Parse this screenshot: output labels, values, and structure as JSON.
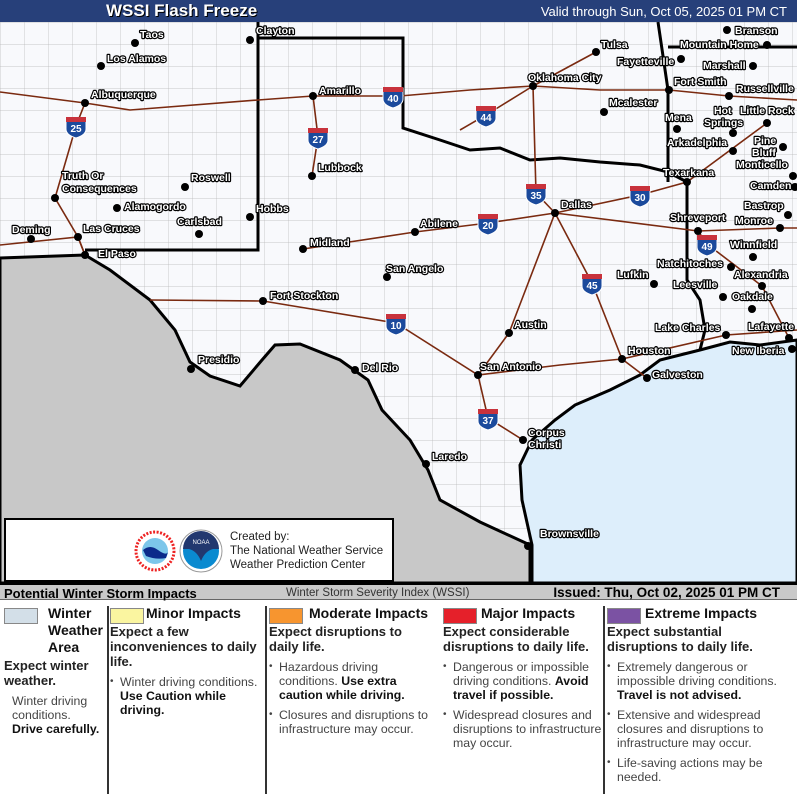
{
  "header": {
    "title": "WSSI Flash Freeze",
    "valid": "Valid through Sun, Oct 05, 2025 01 PM CT",
    "color": "#27407a"
  },
  "map": {
    "colors": {
      "land": "#f8f9fc",
      "mexico": "#c8c8c8",
      "water": "#ddeefb",
      "border": "#000000",
      "highway": "#7a2a10"
    },
    "cities": [
      "Taos",
      "Los Alamos",
      "Albuquerque",
      "Clayton",
      "Amarillo",
      "Tulsa",
      "Fayetteville",
      "Branson",
      "Mountain Home",
      "Marshall",
      "Oklahoma City",
      "Fort Smith",
      "Russellville",
      "Mcalester",
      "Hot",
      "Springs",
      "Little Rock",
      "Mena",
      "Arkadelphia",
      "Pine",
      "Bluff",
      "Monticello",
      "Texarkana",
      "Camden",
      "Lubbock",
      "Roswell",
      "Truth Or",
      "Consequences",
      "Alamogordo",
      "Carlsbad",
      "Hobbs",
      "Deming",
      "Las Cruces",
      "El Paso",
      "Abilene",
      "Dallas",
      "Bastrop",
      "Shreveport",
      "Monroe",
      "Winnfield",
      "Midland",
      "Natchitoches",
      "San Angelo",
      "Alexandria",
      "Lufkin",
      "Leesville",
      "Oakdale",
      "Fort Stockton",
      "Austin",
      "Lake Charles",
      "Lafayette",
      "Houston",
      "New Iberia",
      "Presidio",
      "Del Rio",
      "San Antonio",
      "Galveston",
      "Corpus",
      "Christi",
      "Laredo",
      "Brownsville"
    ],
    "interstates": [
      "25",
      "40",
      "27",
      "44",
      "35",
      "30",
      "20",
      "49",
      "45",
      "10",
      "37"
    ]
  },
  "credit": {
    "line1": "Created by:",
    "line2": "The National Weather Service",
    "line3": "Weather Prediction Center",
    "logos": [
      "nws-logo",
      "noaa-logo"
    ]
  },
  "bar": {
    "left": "Potential Winter Storm Impacts",
    "center": "Winter Storm Severity Index (WSSI)",
    "issued": "Issued: Thu, Oct 02, 2025 01 PM CT"
  },
  "legend": [
    {
      "title": "Winter Weather Area",
      "color": "#d3dfe8",
      "head": "Expect winter weather.",
      "items": [
        {
          "t": "Winter driving conditions. ",
          "b": "Drive carefully."
        }
      ]
    },
    {
      "title": "Minor Impacts",
      "color": "#faf5a0",
      "head": "Expect a few inconveniences to daily life.",
      "items": [
        {
          "t": "Winter driving conditions. ",
          "b": "Use Caution while driving."
        }
      ]
    },
    {
      "title": "Moderate Impacts",
      "color": "#f7952f",
      "head": "Expect disruptions to daily life.",
      "items": [
        {
          "t": "Hazardous driving conditions. ",
          "b": "Use extra caution while driving."
        },
        {
          "t": "Closures and disruptions to infrastructure may occur.",
          "b": ""
        }
      ]
    },
    {
      "title": "Major Impacts",
      "color": "#e5202a",
      "head": "Expect considerable disruptions to daily life.",
      "items": [
        {
          "t": "Dangerous or impossible driving conditions. ",
          "b": "Avoid travel if possible."
        },
        {
          "t": "Widespread closures and disruptions to infrastructure may occur.",
          "b": ""
        }
      ]
    },
    {
      "title": "Extreme Impacts",
      "color": "#7b52a3",
      "head": "Expect substantial disruptions to daily life.",
      "items": [
        {
          "t": "Extremely dangerous or impossible driving conditions. ",
          "b": "Travel is not advised."
        },
        {
          "t": "Extensive and widespread closures and disruptions to infrastructure may occur.",
          "b": ""
        },
        {
          "t": "Life-saving actions may be needed.",
          "b": ""
        }
      ]
    }
  ]
}
